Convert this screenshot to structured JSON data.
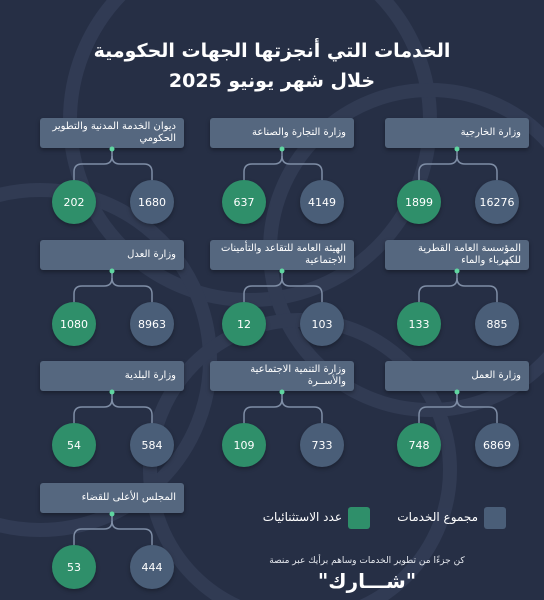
{
  "title": {
    "line1": "الخدمات التي أنجزتها الجهات الحكومية",
    "line2": "خلال شهر يونيو 2025"
  },
  "entities": [
    {
      "name": "وزارة الخارجية",
      "total_services": "16276",
      "exceptions": "1899"
    },
    {
      "name": "وزارة التجارة والصناعة",
      "total_services": "4149",
      "exceptions": "637"
    },
    {
      "name": "ديوان الخدمة المدنية والتطوير الحكومي",
      "total_services": "1680",
      "exceptions": "202"
    },
    {
      "name": "المؤسسة العامة القطرية للكهرباء والماء",
      "total_services": "885",
      "exceptions": "133"
    },
    {
      "name": "الهيئة العامة للتقاعد والتأمينات الاجتماعية",
      "total_services": "103",
      "exceptions": "12"
    },
    {
      "name": "وزارة العدل",
      "total_services": "8963",
      "exceptions": "1080"
    },
    {
      "name": "وزارة العمل",
      "total_services": "6869",
      "exceptions": "748"
    },
    {
      "name": "وزارة التنمية الاجتماعية والأســرة",
      "total_services": "733",
      "exceptions": "109"
    },
    {
      "name": "وزارة البلدية",
      "total_services": "584",
      "exceptions": "54"
    },
    {
      "name": "المجلس الأعلى للقضاء",
      "total_services": "444",
      "exceptions": "53"
    }
  ],
  "legend": {
    "total_services": "مجموع الخدمات",
    "exceptions": "عدد الاستثنائيات",
    "colors": {
      "total_services": "#4a5e78",
      "exceptions": "#2f8f6a"
    }
  },
  "footer": {
    "note": "كن جزءًا من تطوير الخدمات وساهم برأيك عبر منصة",
    "brand": "\"شـــارك\""
  }
}
